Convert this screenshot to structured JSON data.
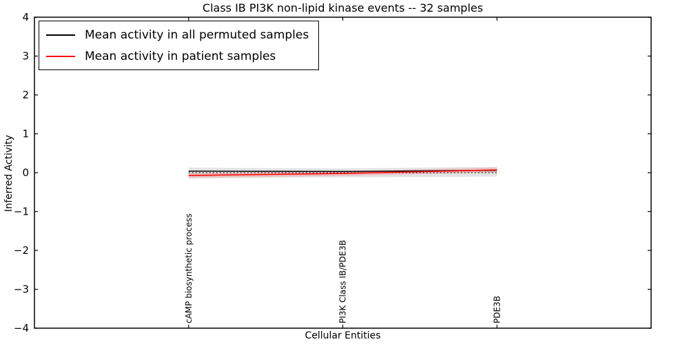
{
  "chart_data": {
    "type": "line",
    "title": "Class IB PI3K non-lipid kinase events -- 32 samples",
    "xlabel": "Cellular Entities",
    "ylabel": "Inferred Activity",
    "xlim": [
      0,
      4
    ],
    "ylim": [
      -4,
      4
    ],
    "yticks": [
      -4,
      -3,
      -2,
      -1,
      0,
      1,
      2,
      3,
      4
    ],
    "grid": false,
    "legend_position": "upper left",
    "categories": [
      "cAMP biosynthetic process",
      "PI3K Class IB/PDE3B",
      "PDE3B"
    ],
    "x": [
      1,
      2,
      3
    ],
    "zero_line": true,
    "series": [
      {
        "name": "Mean activity in all permuted samples",
        "color": "#000000",
        "values": [
          0.04,
          0.03,
          0.06
        ],
        "band": {
          "lower": [
            -0.15,
            -0.12,
            -0.1
          ],
          "upper": [
            0.13,
            0.11,
            0.15
          ],
          "color": "#cccccc",
          "opacity": 0.55
        }
      },
      {
        "name": "Mean activity in patient samples",
        "color": "#ff0000",
        "values": [
          -0.07,
          -0.02,
          0.07
        ],
        "band": {
          "lower": [
            -0.13,
            -0.08,
            0.01
          ],
          "upper": [
            -0.01,
            0.04,
            0.13
          ],
          "color": "#ff6666",
          "opacity": 0.3
        }
      }
    ]
  }
}
